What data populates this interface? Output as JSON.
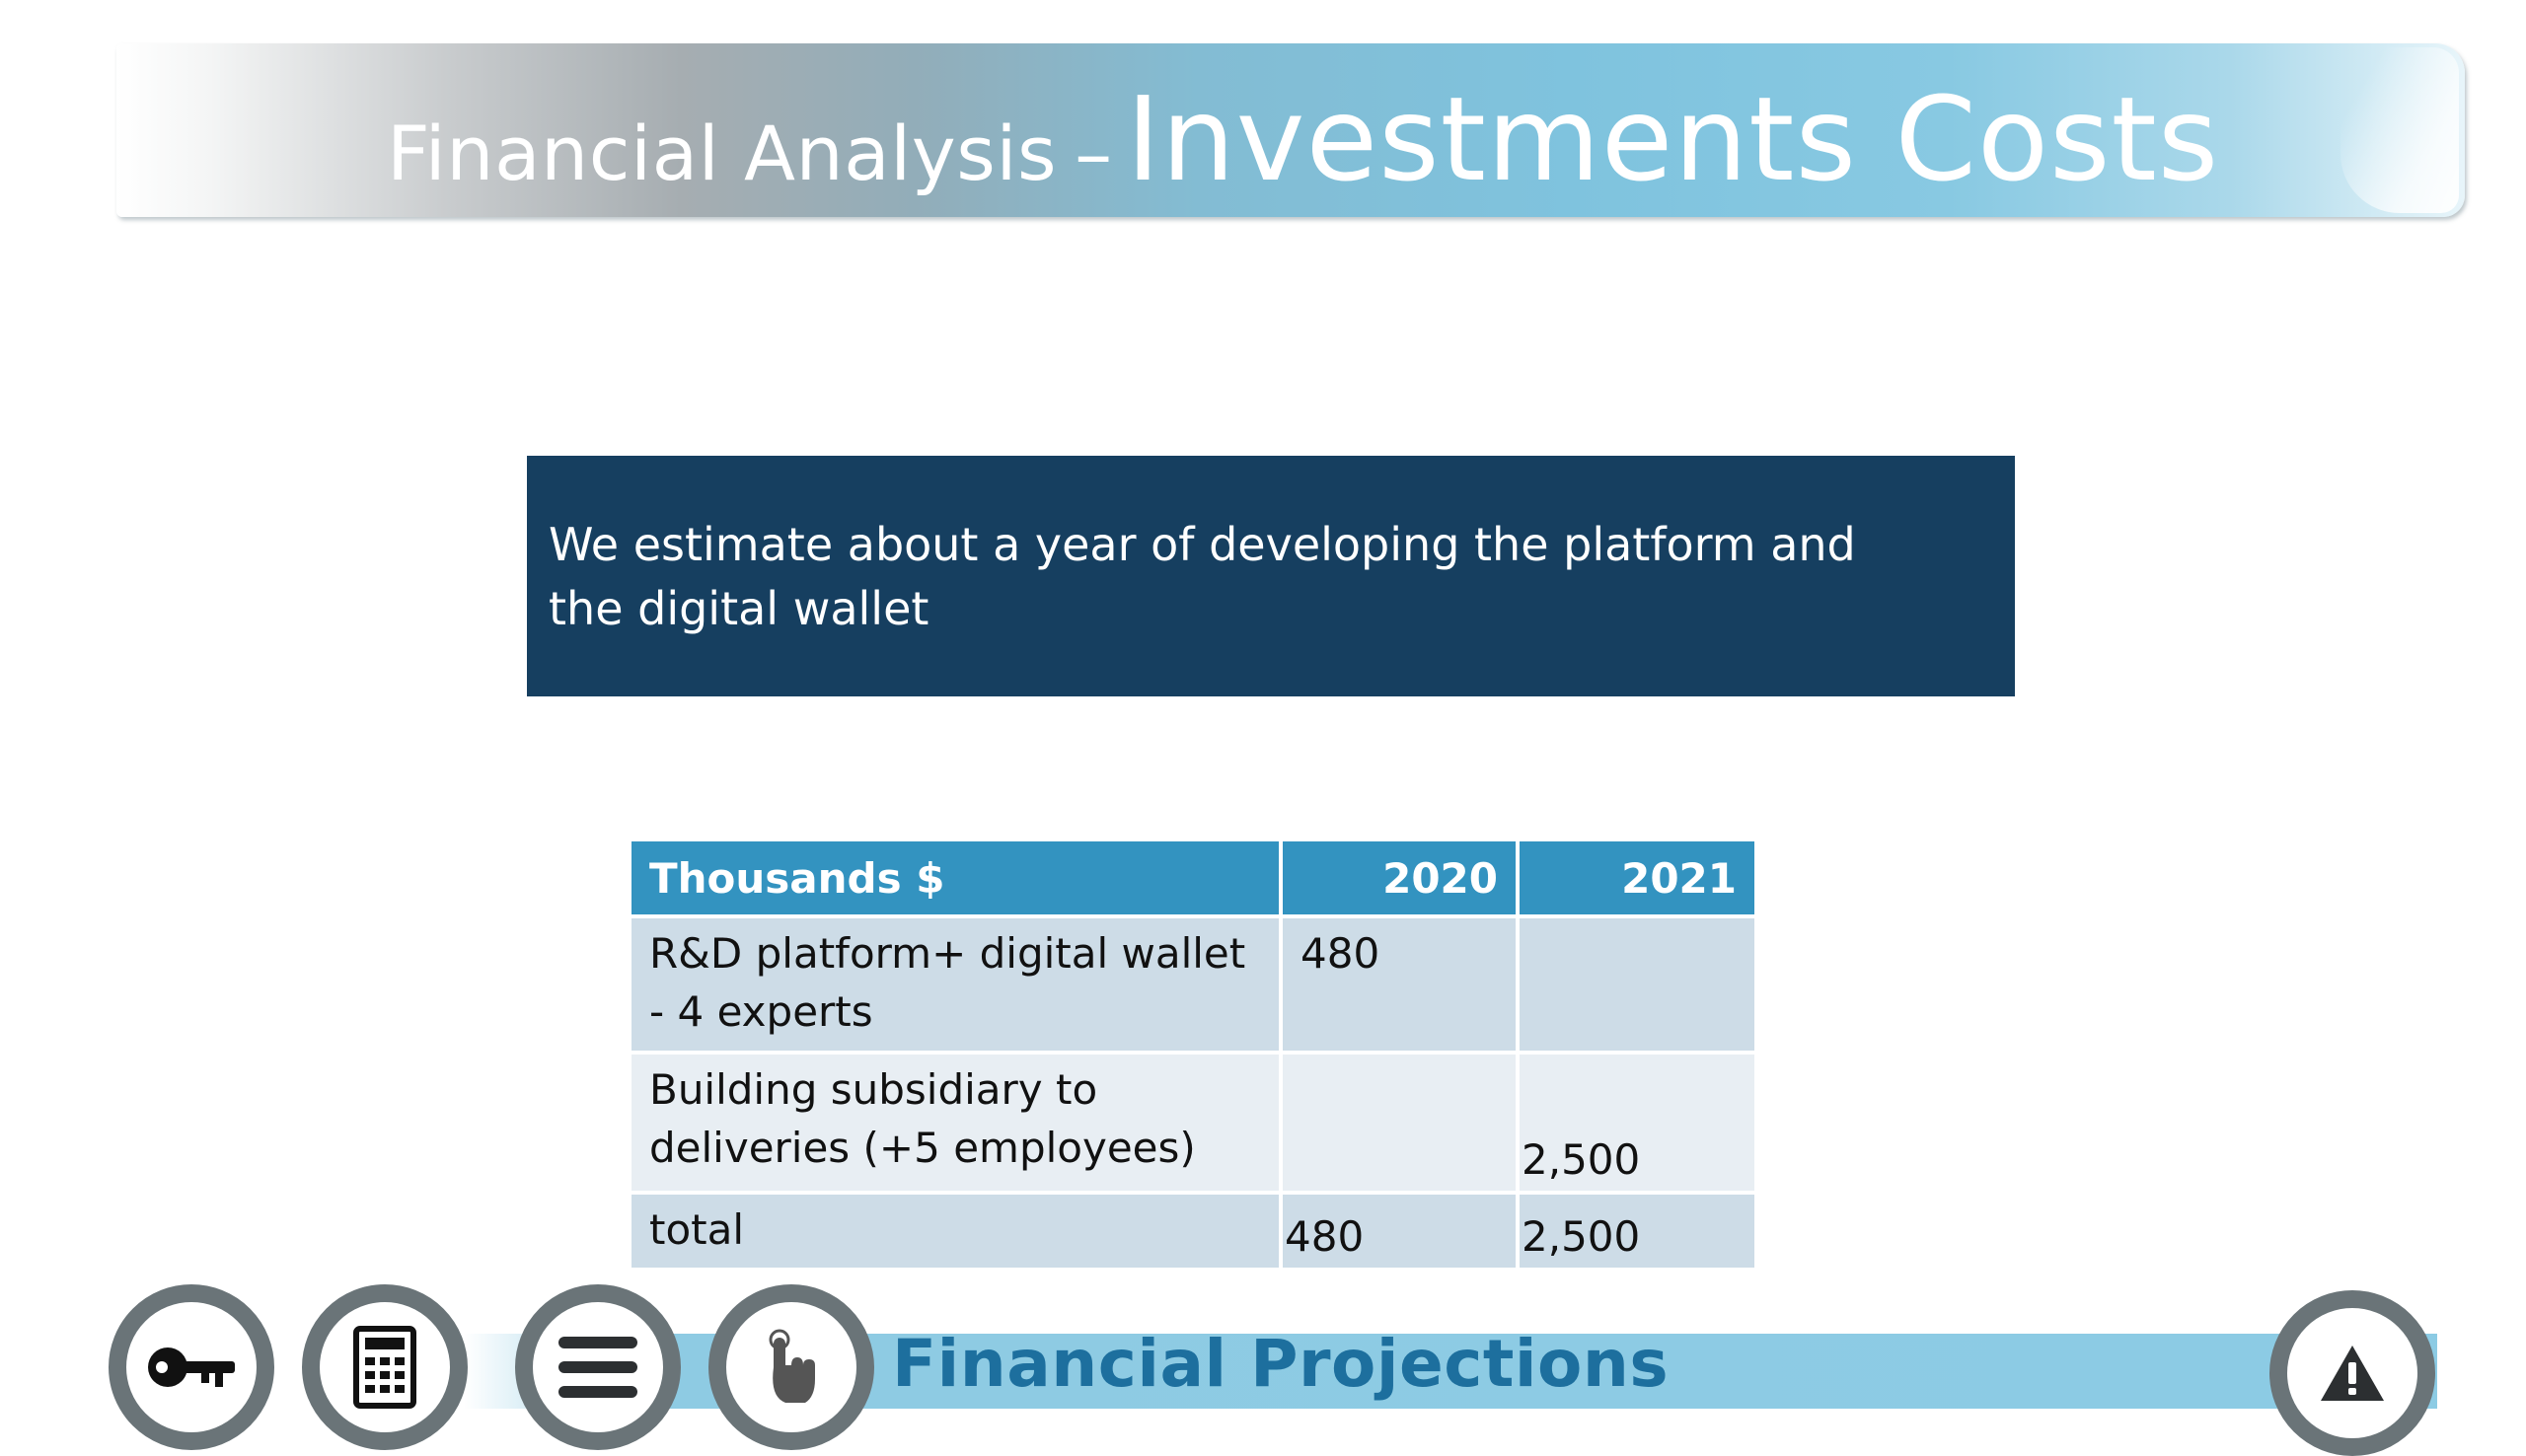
{
  "header": {
    "title_prefix": "Financial Analysis",
    "title_dash": "–",
    "title_main": "Investments Costs"
  },
  "callout": {
    "text": "We estimate about a year of developing the platform and the digital wallet"
  },
  "table": {
    "headers": [
      "Thousands $",
      "2020",
      "2021"
    ],
    "rows": [
      {
        "label": "R&D platform+ digital wallet - 4 experts",
        "y2020": "480",
        "y2021": ""
      },
      {
        "label": "Building subsidiary to deliveries (+5 employees)",
        "y2020": "",
        "y2021": "2,500"
      },
      {
        "label": "total",
        "y2020": "480",
        "y2021": "2,500"
      }
    ]
  },
  "nav": {
    "section_title": "Financial Projections",
    "buttons": [
      {
        "icon": "key-icon"
      },
      {
        "icon": "calculator-icon"
      },
      {
        "icon": "list-icon"
      },
      {
        "icon": "hand-pointer-icon"
      },
      {
        "icon": "warning-icon"
      }
    ]
  },
  "colors": {
    "callout_bg": "#163f60",
    "table_header_bg": "#3393c0",
    "row_dark": "#cddce7",
    "row_light": "#e8eef3",
    "nav_title": "#1d6f9e",
    "nav_bar": "#8ccbe4",
    "button_ring": "#6a7478"
  }
}
